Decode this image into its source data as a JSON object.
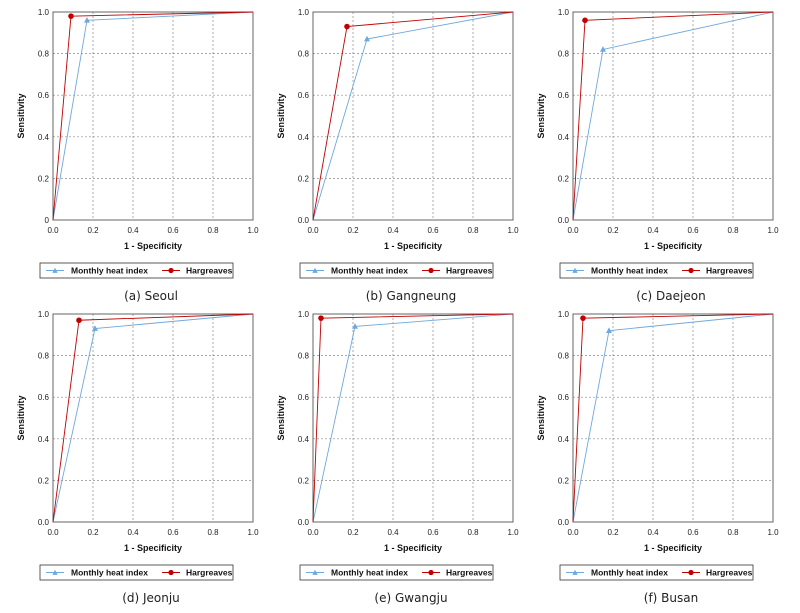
{
  "chart_data": [
    {
      "type": "line",
      "caption": "(a) Seoul",
      "xlabel": "1 - Specificity",
      "ylabel": "Sensitivity",
      "xlim": [
        0,
        1
      ],
      "ylim": [
        0,
        1
      ],
      "xticks": [
        "0.0",
        "0.2",
        "0.4",
        "0.6",
        "0.8",
        "1.0"
      ],
      "yticks": [
        "0",
        "0.2",
        "0.4",
        "0.6",
        "0.8",
        "1.0"
      ],
      "grid": true,
      "legend_position": "bottom",
      "series": [
        {
          "name": "Monthly heat index",
          "color": "#6fa8dc",
          "marker": "triangle",
          "points": [
            [
              0,
              0
            ],
            [
              0.17,
              0.96
            ],
            [
              1,
              1
            ]
          ]
        },
        {
          "name": "Hargreaves",
          "color": "#c00000",
          "marker": "circle",
          "points": [
            [
              0,
              0
            ],
            [
              0.09,
              0.98
            ],
            [
              1,
              1
            ]
          ]
        }
      ]
    },
    {
      "type": "line",
      "caption": "(b) Gangneung",
      "xlabel": "1 - Specificity",
      "ylabel": "Sensitivity",
      "xlim": [
        0,
        1
      ],
      "ylim": [
        0,
        1
      ],
      "xticks": [
        "0.0",
        "0.2",
        "0.4",
        "0.6",
        "0.8",
        "1.0"
      ],
      "yticks": [
        "0.0",
        "0.2",
        "0.4",
        "0.6",
        "0.8",
        "1.0"
      ],
      "grid": true,
      "legend_position": "bottom",
      "series": [
        {
          "name": "Monthly heat index",
          "color": "#6fa8dc",
          "marker": "triangle",
          "points": [
            [
              0,
              0
            ],
            [
              0.27,
              0.87
            ],
            [
              1,
              1
            ]
          ]
        },
        {
          "name": "Hargreaves",
          "color": "#c00000",
          "marker": "circle",
          "points": [
            [
              0,
              0
            ],
            [
              0.17,
              0.93
            ],
            [
              1,
              1
            ]
          ]
        }
      ]
    },
    {
      "type": "line",
      "caption": "(c) Daejeon",
      "xlabel": "1 - Specificity",
      "ylabel": "Sensitivity",
      "xlim": [
        0,
        1
      ],
      "ylim": [
        0,
        1
      ],
      "xticks": [
        "0.0",
        "0.2",
        "0.4",
        "0.6",
        "0.8",
        "1.0"
      ],
      "yticks": [
        "0.0",
        "0.2",
        "0.4",
        "0.6",
        "0.8",
        "1.0"
      ],
      "grid": true,
      "legend_position": "bottom",
      "series": [
        {
          "name": "Monthly heat index",
          "color": "#6fa8dc",
          "marker": "triangle",
          "points": [
            [
              0,
              0
            ],
            [
              0.15,
              0.82
            ],
            [
              1,
              1
            ]
          ]
        },
        {
          "name": "Hargreaves",
          "color": "#c00000",
          "marker": "circle",
          "points": [
            [
              0,
              0
            ],
            [
              0.06,
              0.96
            ],
            [
              1,
              1
            ]
          ]
        }
      ]
    },
    {
      "type": "line",
      "caption": "(d) Jeonju",
      "xlabel": "1 - Specificity",
      "ylabel": "Sensitivity",
      "xlim": [
        0,
        1
      ],
      "ylim": [
        0,
        1
      ],
      "xticks": [
        "0.0",
        "0.2",
        "0.4",
        "0.6",
        "0.8",
        "1.0"
      ],
      "yticks": [
        "0.0",
        "0.2",
        "0.4",
        "0.6",
        "0.8",
        "1.0"
      ],
      "grid": true,
      "legend_position": "bottom",
      "series": [
        {
          "name": "Monthly heat index",
          "color": "#6fa8dc",
          "marker": "triangle",
          "points": [
            [
              0,
              0
            ],
            [
              0.21,
              0.93
            ],
            [
              1,
              1
            ]
          ]
        },
        {
          "name": "Hargreaves",
          "color": "#c00000",
          "marker": "circle",
          "points": [
            [
              0,
              0
            ],
            [
              0.13,
              0.97
            ],
            [
              1,
              1
            ]
          ]
        }
      ]
    },
    {
      "type": "line",
      "caption": "(e) Gwangju",
      "xlabel": "1 - Specificity",
      "ylabel": "Sensitivity",
      "xlim": [
        0,
        1
      ],
      "ylim": [
        0,
        1
      ],
      "xticks": [
        "0.0",
        "0.2",
        "0.4",
        "0.6",
        "0.8",
        "1.0"
      ],
      "yticks": [
        "0.0",
        "0.2",
        "0.4",
        "0.6",
        "0.8",
        "1.0"
      ],
      "grid": true,
      "legend_position": "bottom",
      "series": [
        {
          "name": "Monthly heat index",
          "color": "#6fa8dc",
          "marker": "triangle",
          "points": [
            [
              0,
              0
            ],
            [
              0.21,
              0.94
            ],
            [
              1,
              1
            ]
          ]
        },
        {
          "name": "Hargreaves",
          "color": "#c00000",
          "marker": "circle",
          "points": [
            [
              0,
              0
            ],
            [
              0.04,
              0.98
            ],
            [
              1,
              1
            ]
          ]
        }
      ]
    },
    {
      "type": "line",
      "caption": "(f) Busan",
      "xlabel": "1 - Specificity",
      "ylabel": "Sensitivity",
      "xlim": [
        0,
        1
      ],
      "ylim": [
        0,
        1
      ],
      "xticks": [
        "0.0",
        "0.2",
        "0.4",
        "0.6",
        "0.8",
        "1.0"
      ],
      "yticks": [
        "0.0",
        "0.2",
        "0.4",
        "0.6",
        "0.8",
        "1.0"
      ],
      "grid": true,
      "legend_position": "bottom",
      "series": [
        {
          "name": "Monthly heat index",
          "color": "#6fa8dc",
          "marker": "triangle",
          "points": [
            [
              0,
              0
            ],
            [
              0.18,
              0.92
            ],
            [
              1,
              1
            ]
          ]
        },
        {
          "name": "Hargreaves",
          "color": "#c00000",
          "marker": "circle",
          "points": [
            [
              0,
              0
            ],
            [
              0.05,
              0.98
            ],
            [
              1,
              1
            ]
          ]
        }
      ]
    }
  ]
}
